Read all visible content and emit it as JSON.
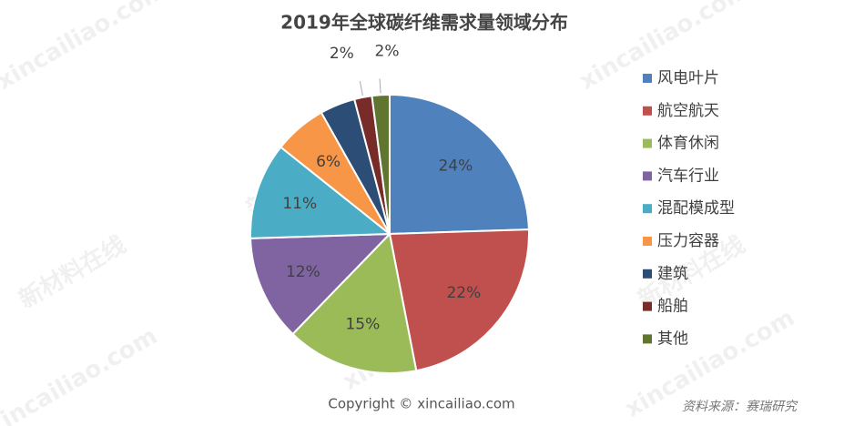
{
  "chart_data": {
    "type": "pie",
    "title": "2019年全球碳纤维需求量领域分布",
    "categories": [
      "风电叶片",
      "航空航天",
      "体育休闲",
      "汽车行业",
      "混配模成型",
      "压力容器",
      "建筑",
      "船舶",
      "其他"
    ],
    "values": [
      24,
      22,
      15,
      12,
      11,
      6,
      4,
      2,
      2
    ],
    "value_labels": [
      "24%",
      "22%",
      "15%",
      "12%",
      "11%",
      "6%",
      null,
      "2%",
      "2%"
    ],
    "colors": [
      "#4f81bd",
      "#c0504d",
      "#9bbb59",
      "#8064a2",
      "#4bacc6",
      "#f79646",
      "#2c4d75",
      "#772c2a",
      "#5f7530"
    ],
    "legend": "right",
    "copyright": "Copyright © xincailiao.com",
    "source": "资料来源：赛瑞研究",
    "watermarks": [
      "xincailiao.com",
      "新材料在线"
    ]
  }
}
